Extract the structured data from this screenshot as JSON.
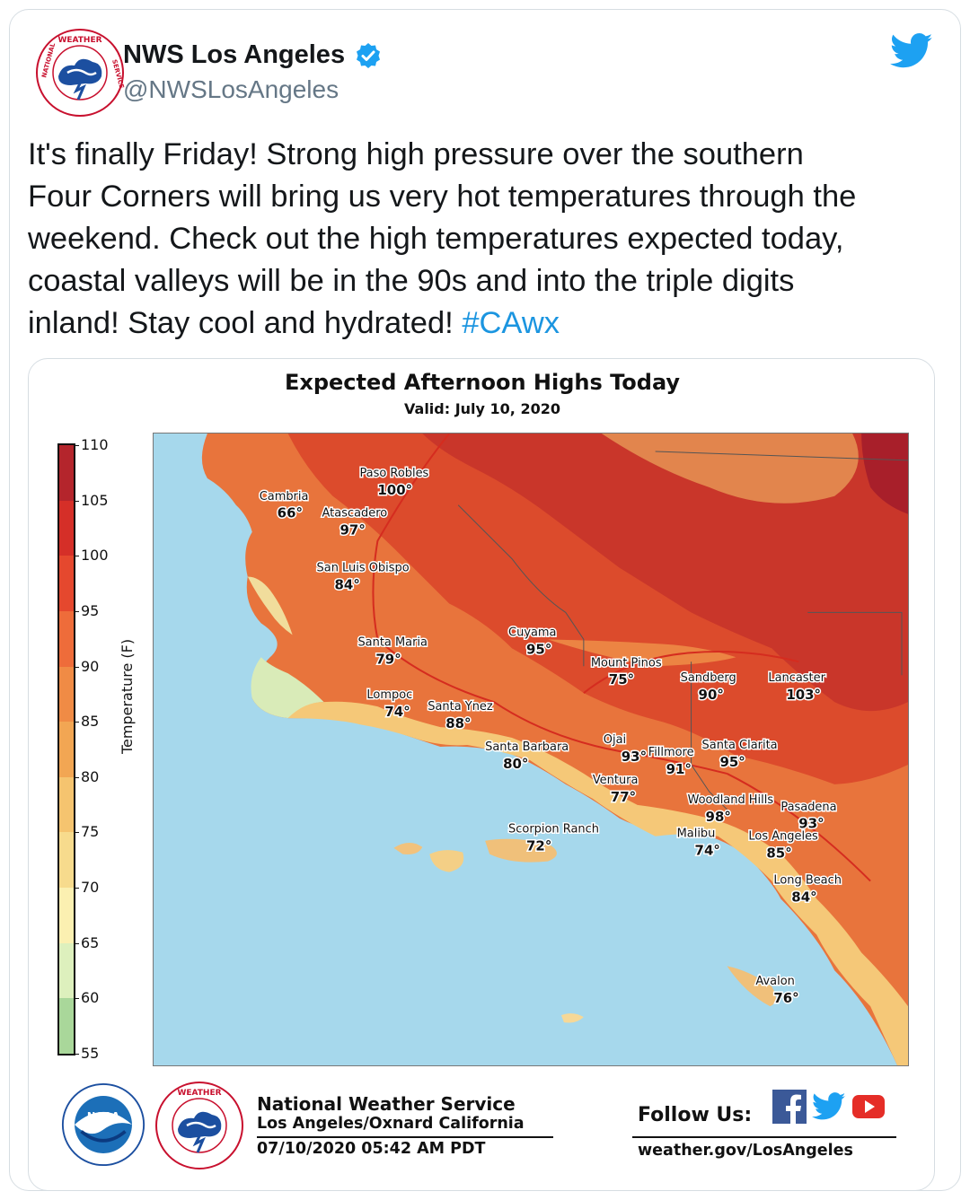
{
  "tweet": {
    "author_name": "NWS Los Angeles",
    "handle": "@NWSLosAngeles",
    "text_lines": [
      "It's finally Friday! Strong high pressure over the southern",
      "Four Corners will bring us very hot temperatures through the",
      "weekend. Check out the high temperatures expected today,",
      "coastal valleys will be in the 90s and into the triple digits"
    ],
    "text_last_line": "inland! Stay cool and hydrated! ",
    "hashtag": "#CAwx",
    "icons": [
      "nws-logo-icon",
      "verified-badge-icon",
      "twitter-bird-icon"
    ]
  },
  "map": {
    "title": "Expected Afternoon Highs Today",
    "valid": "Valid: July 10, 2020",
    "colorbar": {
      "label": "Temperature (F)",
      "ticks": [
        "110",
        "105",
        "100",
        "95",
        "90",
        "85",
        "80",
        "75",
        "70",
        "65",
        "60",
        "55"
      ],
      "colors": [
        "#b4252c",
        "#d52f28",
        "#e5482e",
        "#ee6c3a",
        "#f08b45",
        "#f2a653",
        "#f5c46f",
        "#f7db8d",
        "#fbf0b1",
        "#ddf0bd",
        "#a9d79a",
        "#79bd6c"
      ]
    },
    "colors": {
      "ocean": "#a6d8ec",
      "hot": "#e15a2e",
      "very_hot": "#c9382a",
      "extreme": "#a81f2a",
      "warm": "#f19a4c",
      "mild": "#f7d28b",
      "cool": "#ddecbe"
    },
    "cities": [
      {
        "name": "Paso Robles",
        "temp": "100°"
      },
      {
        "name": "Cambria",
        "temp": "66°"
      },
      {
        "name": "Atascadero",
        "temp": "97°"
      },
      {
        "name": "San Luis Obispo",
        "temp": "84°"
      },
      {
        "name": "Cuyama",
        "temp": "95°"
      },
      {
        "name": "Santa Maria",
        "temp": "79°"
      },
      {
        "name": "Mount Pinos",
        "temp": "75°"
      },
      {
        "name": "Sandberg",
        "temp": "90°"
      },
      {
        "name": "Lancaster",
        "temp": "103°"
      },
      {
        "name": "Lompoc",
        "temp": "74°"
      },
      {
        "name": "Santa Ynez",
        "temp": "88°"
      },
      {
        "name": "Santa Barbara",
        "temp": "80°"
      },
      {
        "name": "Ojai",
        "temp": "93°"
      },
      {
        "name": "Fillmore",
        "temp": "91°"
      },
      {
        "name": "Santa Clarita",
        "temp": "95°"
      },
      {
        "name": "Ventura",
        "temp": "77°"
      },
      {
        "name": "Woodland Hills",
        "temp": "98°"
      },
      {
        "name": "Pasadena",
        "temp": "93°"
      },
      {
        "name": "Scorpion Ranch",
        "temp": "72°"
      },
      {
        "name": "Malibu",
        "temp": "74°"
      },
      {
        "name": "Los Angeles",
        "temp": "85°"
      },
      {
        "name": "Long Beach",
        "temp": "84°"
      },
      {
        "name": "Avalon",
        "temp": "76°"
      }
    ],
    "footer": {
      "org": "National Weather Service",
      "office": "Los Angeles/Oxnard California",
      "timestamp": "07/10/2020 05:42 AM PDT",
      "follow": "Follow Us:",
      "website": "weather.gov/LosAngeles",
      "icons": [
        "noaa-logo-icon",
        "nws-logo-icon",
        "facebook-icon",
        "twitter-icon",
        "youtube-icon"
      ]
    }
  }
}
